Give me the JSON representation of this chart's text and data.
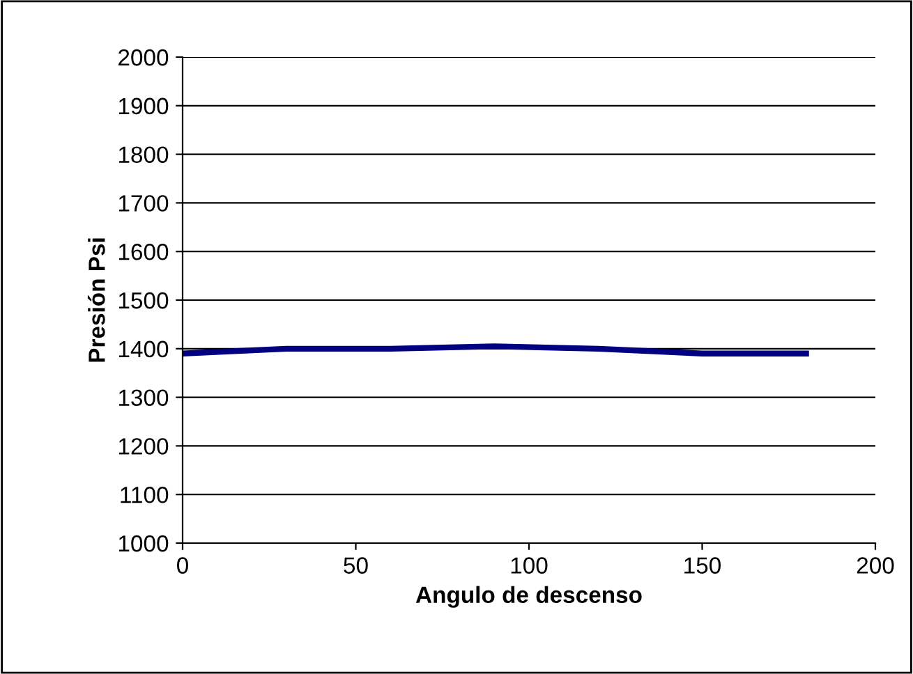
{
  "chart_data": {
    "type": "line",
    "xlabel": "Angulo de descenso",
    "ylabel": "Presión Psi",
    "x": [
      0,
      30,
      60,
      90,
      120,
      150,
      180
    ],
    "series": [
      {
        "color": "#000080",
        "values": [
          1390,
          1400,
          1400,
          1405,
          1400,
          1390,
          1390
        ]
      }
    ],
    "xlim": [
      0,
      200
    ],
    "xticks": [
      0,
      50,
      100,
      150,
      200
    ],
    "ylim": [
      1000,
      2000
    ],
    "yticks": [
      1000,
      1100,
      1200,
      1300,
      1400,
      1500,
      1600,
      1700,
      1800,
      1900,
      2000
    ],
    "grid": "y",
    "marker": "none",
    "line_style": "solid"
  }
}
